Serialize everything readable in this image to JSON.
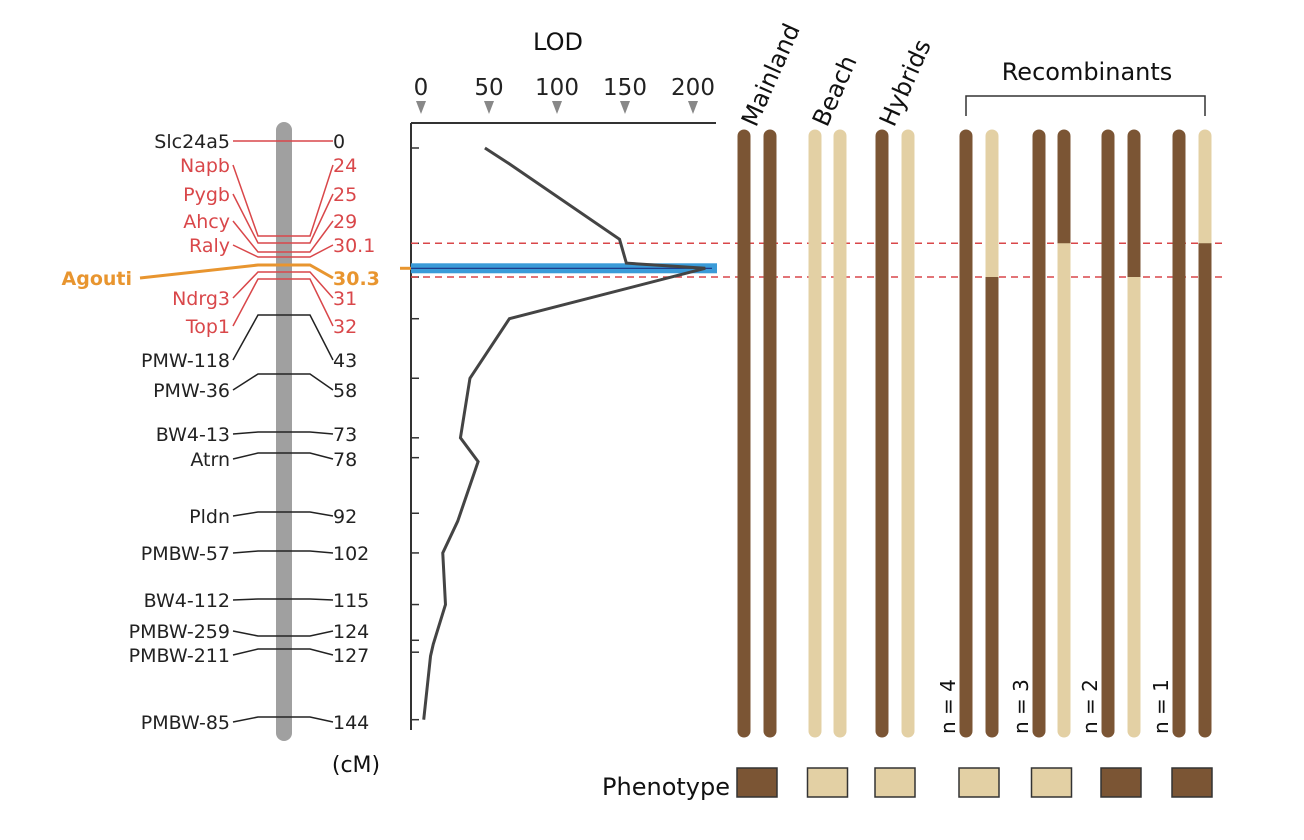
{
  "colors": {
    "marker_red": "#d9474a",
    "agouti": "#e8952f",
    "chromosome": "#a0a0a0",
    "lod_line": "#444444",
    "peak": "#3a9bd8",
    "brown": "#7b5534",
    "tan": "#e3d0a4",
    "threshold": "#d9474a"
  },
  "map": {
    "unit_label": "(cM)",
    "markers": [
      {
        "name": "Slc24a5",
        "cM": "0",
        "color": "black_red"
      },
      {
        "name": "Napb",
        "cM": "24",
        "color": "red"
      },
      {
        "name": "Pygb",
        "cM": "25",
        "color": "red"
      },
      {
        "name": "Ahcy",
        "cM": "29",
        "color": "red"
      },
      {
        "name": "Raly",
        "cM": "30.1",
        "color": "red"
      },
      {
        "name": "Agouti",
        "cM": "30.3",
        "color": "orange"
      },
      {
        "name": "Ndrg3",
        "cM": "31",
        "color": "red"
      },
      {
        "name": "Top1",
        "cM": "32",
        "color": "red"
      },
      {
        "name": "PMW-118",
        "cM": "43",
        "color": "black"
      },
      {
        "name": "PMW-36",
        "cM": "58",
        "color": "black"
      },
      {
        "name": "BW4-13",
        "cM": "73",
        "color": "black"
      },
      {
        "name": "Atrn",
        "cM": "78",
        "color": "black"
      },
      {
        "name": "Pldn",
        "cM": "92",
        "color": "black"
      },
      {
        "name": "PMBW-57",
        "cM": "102",
        "color": "black"
      },
      {
        "name": "BW4-112",
        "cM": "115",
        "color": "black"
      },
      {
        "name": "PMBW-259",
        "cM": "124",
        "color": "black"
      },
      {
        "name": "PMBW-211",
        "cM": "127",
        "color": "black"
      },
      {
        "name": "PMBW-85",
        "cM": "144",
        "color": "black"
      }
    ]
  },
  "chart_data": {
    "type": "line",
    "xlabel": "LOD",
    "x_ticks": [
      "0",
      "50",
      "100",
      "150",
      "200"
    ],
    "xlim": [
      0,
      215
    ],
    "ylim_cM": [
      0,
      144
    ],
    "points": [
      {
        "cM": 0,
        "lod": 47
      },
      {
        "cM": 4,
        "lod": 65
      },
      {
        "cM": 23,
        "lod": 146
      },
      {
        "cM": 29,
        "lod": 151
      },
      {
        "cM": 30.3,
        "lod": 209
      },
      {
        "cM": 43,
        "lod": 65
      },
      {
        "cM": 58,
        "lod": 36
      },
      {
        "cM": 73,
        "lod": 29
      },
      {
        "cM": 79,
        "lod": 42
      },
      {
        "cM": 94,
        "lod": 27
      },
      {
        "cM": 102,
        "lod": 16
      },
      {
        "cM": 115,
        "lod": 18
      },
      {
        "cM": 125,
        "lod": 9
      },
      {
        "cM": 128,
        "lod": 7
      },
      {
        "cM": 144,
        "lod": 2
      }
    ],
    "peak_cM": 30.3,
    "threshold_interval_cM": [
      24,
      32.5
    ],
    "marker_ticks_cM": [
      0,
      24,
      30.3,
      32.5,
      43,
      58,
      73,
      78,
      92,
      102,
      115,
      124,
      127,
      144
    ]
  },
  "groups": [
    {
      "label": "Mainland",
      "chromosomes": [
        {
          "top": "brown",
          "bottom": "brown"
        },
        {
          "top": "brown",
          "bottom": "brown"
        }
      ],
      "phenotype": "brown",
      "n": ""
    },
    {
      "label": "Beach",
      "chromosomes": [
        {
          "top": "tan",
          "bottom": "tan"
        },
        {
          "top": "tan",
          "bottom": "tan"
        }
      ],
      "phenotype": "tan",
      "n": ""
    },
    {
      "label": "Hybrids",
      "chromosomes": [
        {
          "top": "brown",
          "bottom": "brown"
        },
        {
          "top": "tan",
          "bottom": "tan"
        }
      ],
      "phenotype": "tan",
      "n": ""
    },
    {
      "label": "",
      "chromosomes": [
        {
          "top": "brown",
          "bottom": "brown"
        },
        {
          "top": "tan",
          "bottom": "brown",
          "break_cM": 32.5
        }
      ],
      "phenotype": "tan",
      "n": "n = 4"
    },
    {
      "label": "",
      "chromosomes": [
        {
          "top": "brown",
          "bottom": "brown"
        },
        {
          "top": "brown",
          "bottom": "tan",
          "break_cM": 24
        }
      ],
      "phenotype": "tan",
      "n": "n = 3"
    },
    {
      "label": "",
      "chromosomes": [
        {
          "top": "brown",
          "bottom": "brown"
        },
        {
          "top": "brown",
          "bottom": "tan",
          "break_cM": 32.5
        }
      ],
      "phenotype": "brown",
      "n": "n = 2"
    },
    {
      "label": "",
      "chromosomes": [
        {
          "top": "brown",
          "bottom": "brown"
        },
        {
          "top": "tan",
          "bottom": "brown",
          "break_cM": 24
        }
      ],
      "phenotype": "brown",
      "n": "n = 1"
    }
  ],
  "recombinants_label": "Recombinants",
  "phenotype_label": "Phenotype"
}
